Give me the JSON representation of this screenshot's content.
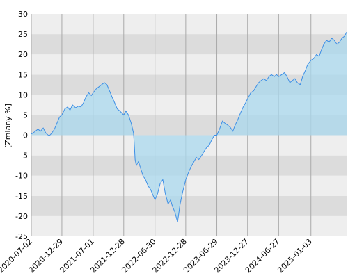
{
  "chart_data": {
    "type": "area",
    "title": "",
    "xlabel": "",
    "ylabel": "[Zmiany %]",
    "ylim": [
      -25,
      30
    ],
    "xlim": [
      "2020-07-02",
      "2025-08-01"
    ],
    "grid": true,
    "legend": "none",
    "y_ticks": [
      -25,
      -20,
      -15,
      -10,
      -5,
      0,
      5,
      10,
      15,
      20,
      25,
      30
    ],
    "x_ticks": [
      "2020-07-02",
      "2020-12-29",
      "2021-07-01",
      "2021-12-28",
      "2022-06-30",
      "2022-12-28",
      "2023-06-29",
      "2023-12-27",
      "2024-06-27",
      "2025-01-03"
    ],
    "colors": {
      "line": "#3d8fe6",
      "fill": "#a9d8ee",
      "band_dark": "#dcdcdc",
      "band_light": "#eeeeee",
      "gridline": "#aaaaaa"
    },
    "series": [
      {
        "x": [
          "2020-07-02",
          "2020-07-20",
          "2020-08-10",
          "2020-08-25",
          "2020-09-10",
          "2020-09-25",
          "2020-10-15",
          "2020-10-30",
          "2020-11-15",
          "2020-11-30",
          "2020-12-15",
          "2020-12-29",
          "2021-01-15",
          "2021-02-01",
          "2021-02-15",
          "2021-03-01",
          "2021-03-20",
          "2021-04-05",
          "2021-04-20",
          "2021-05-05",
          "2021-05-20",
          "2021-06-05",
          "2021-06-20",
          "2021-07-01",
          "2021-07-20",
          "2021-08-05",
          "2021-08-20",
          "2021-09-05",
          "2021-09-20",
          "2021-10-05",
          "2021-10-20",
          "2021-11-05",
          "2021-11-20",
          "2021-12-05",
          "2021-12-28",
          "2022-01-10",
          "2022-01-25",
          "2022-02-10",
          "2022-02-24",
          "2022-03-01",
          "2022-03-05",
          "2022-03-12",
          "2022-03-25",
          "2022-04-05",
          "2022-04-20",
          "2022-05-05",
          "2022-05-20",
          "2022-06-05",
          "2022-06-20",
          "2022-06-30",
          "2022-07-15",
          "2022-07-30",
          "2022-08-15",
          "2022-08-30",
          "2022-09-15",
          "2022-09-30",
          "2022-10-10",
          "2022-10-25",
          "2022-11-10",
          "2022-11-25",
          "2022-12-10",
          "2022-12-28",
          "2023-01-15",
          "2023-02-01",
          "2023-02-15",
          "2023-03-01",
          "2023-03-15",
          "2023-04-01",
          "2023-04-15",
          "2023-05-01",
          "2023-05-15",
          "2023-06-01",
          "2023-06-15",
          "2023-06-29",
          "2023-07-15",
          "2023-08-01",
          "2023-08-15",
          "2023-09-01",
          "2023-09-15",
          "2023-10-01",
          "2023-10-15",
          "2023-11-01",
          "2023-11-15",
          "2023-12-01",
          "2023-12-15",
          "2023-12-27",
          "2024-01-15",
          "2024-02-01",
          "2024-02-15",
          "2024-03-01",
          "2024-03-15",
          "2024-04-01",
          "2024-04-15",
          "2024-05-01",
          "2024-05-15",
          "2024-06-01",
          "2024-06-15",
          "2024-06-27",
          "2024-07-15",
          "2024-08-01",
          "2024-08-15",
          "2024-09-01",
          "2024-09-15",
          "2024-10-01",
          "2024-10-15",
          "2024-11-01",
          "2024-11-15",
          "2024-12-01",
          "2024-12-15",
          "2025-01-03",
          "2025-01-20",
          "2025-02-05",
          "2025-02-20",
          "2025-03-05",
          "2025-03-20",
          "2025-04-05",
          "2025-04-20",
          "2025-05-05",
          "2025-05-20",
          "2025-06-05",
          "2025-06-20",
          "2025-07-05",
          "2025-07-20",
          "2025-08-01"
        ],
        "values": [
          0.3,
          0.8,
          1.5,
          1.0,
          1.8,
          0.6,
          -0.2,
          0.5,
          1.5,
          3.0,
          4.5,
          5.0,
          6.5,
          7.0,
          6.2,
          7.5,
          6.8,
          7.2,
          7.0,
          8.0,
          9.5,
          10.5,
          9.8,
          10.5,
          11.5,
          12.0,
          12.5,
          13.0,
          12.5,
          11.0,
          9.5,
          8.0,
          6.5,
          6.0,
          5.0,
          6.0,
          5.0,
          3.0,
          0.5,
          -3.0,
          -6.0,
          -7.5,
          -6.5,
          -8.0,
          -10.0,
          -11.0,
          -12.5,
          -13.5,
          -15.0,
          -16.0,
          -14.5,
          -12.0,
          -11.0,
          -14.5,
          -17.0,
          -16.0,
          -17.5,
          -19.0,
          -21.5,
          -17.0,
          -14.0,
          -11.0,
          -9.0,
          -7.5,
          -6.5,
          -5.5,
          -6.0,
          -5.0,
          -4.0,
          -3.0,
          -2.5,
          -1.0,
          0.0,
          0.0,
          1.5,
          3.5,
          3.0,
          2.5,
          2.0,
          1.0,
          2.5,
          4.0,
          5.5,
          7.0,
          8.0,
          9.0,
          10.5,
          11.0,
          12.0,
          13.0,
          13.5,
          14.0,
          13.5,
          14.5,
          15.0,
          14.5,
          15.0,
          14.5,
          15.0,
          15.5,
          14.5,
          13.0,
          13.5,
          14.0,
          13.0,
          12.5,
          14.5,
          16.0,
          17.5,
          18.5,
          19.0,
          20.0,
          19.5,
          21.0,
          22.5,
          23.5,
          23.0,
          24.0,
          23.5,
          22.5,
          23.0,
          24.0,
          24.5,
          25.5
        ]
      }
    ]
  }
}
